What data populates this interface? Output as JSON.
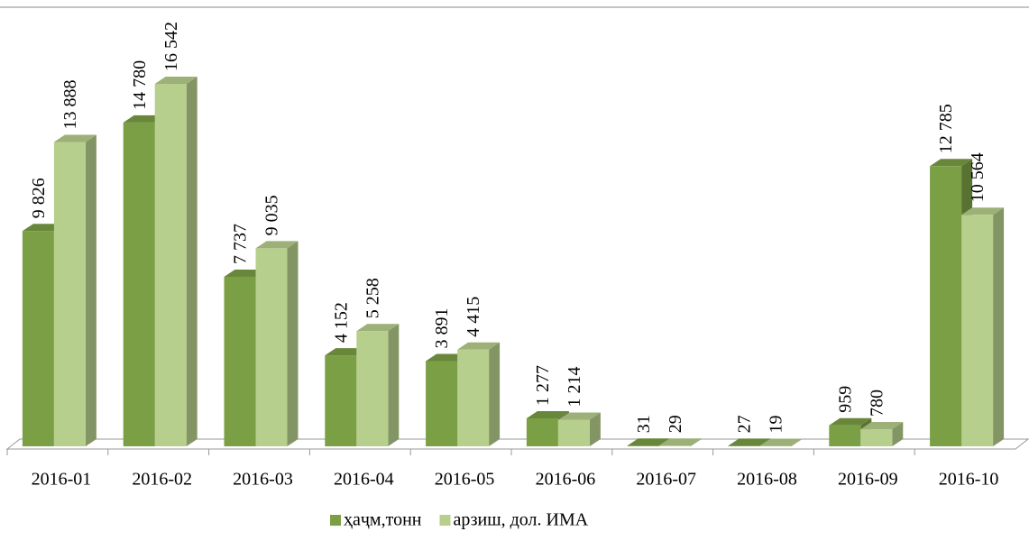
{
  "chart_data": {
    "type": "bar3d",
    "categories": [
      "2016-01",
      "2016-02",
      "2016-03",
      "2016-04",
      "2016-05",
      "2016-06",
      "2016-07",
      "2016-08",
      "2016-09",
      "2016-10"
    ],
    "series": [
      {
        "name": "ҳаҷм,тонн",
        "color": "#7b9f45",
        "values": [
          9826,
          14780,
          7737,
          4152,
          3891,
          1277,
          31,
          27,
          959,
          12785
        ],
        "value_labels": [
          "9 826",
          "14 780",
          "7 737",
          "4 152",
          "3 891",
          "1 277",
          "31",
          "27",
          "959",
          "12 785"
        ]
      },
      {
        "name": "арзиш, дол. ИМА",
        "color": "#b7cf8c",
        "values": [
          13888,
          16542,
          9035,
          5258,
          4415,
          1214,
          29,
          19,
          780,
          10564
        ],
        "value_labels": [
          "13 888",
          "16 542",
          "9 035",
          "5 258",
          "4 415",
          "1 214",
          "29",
          "19",
          "780",
          "10 564"
        ]
      }
    ]
  }
}
